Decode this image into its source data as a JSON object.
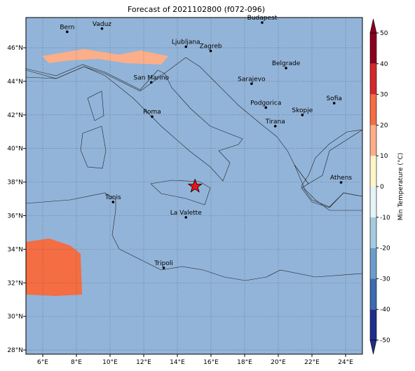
{
  "title": "Forecast of 2021102800 (f072-096)",
  "map": {
    "lon_range": [
      5,
      25
    ],
    "lat_range": [
      27.75,
      47.8
    ],
    "xticks": [
      {
        "value": 6,
        "label": "6°E"
      },
      {
        "value": 8,
        "label": "8°E"
      },
      {
        "value": 10,
        "label": "10°E"
      },
      {
        "value": 12,
        "label": "12°E"
      },
      {
        "value": 14,
        "label": "14°E"
      },
      {
        "value": 16,
        "label": "16°E"
      },
      {
        "value": 18,
        "label": "18°E"
      },
      {
        "value": 20,
        "label": "20°E"
      },
      {
        "value": 22,
        "label": "22°E"
      },
      {
        "value": 24,
        "label": "24°E"
      }
    ],
    "yticks": [
      {
        "value": 28,
        "label": "28°N"
      },
      {
        "value": 30,
        "label": "30°N"
      },
      {
        "value": 32,
        "label": "32°N"
      },
      {
        "value": 34,
        "label": "34°N"
      },
      {
        "value": 36,
        "label": "36°N"
      },
      {
        "value": 38,
        "label": "38°N"
      },
      {
        "value": 40,
        "label": "40°N"
      },
      {
        "value": 42,
        "label": "42°N"
      },
      {
        "value": 44,
        "label": "44°N"
      },
      {
        "value": 46,
        "label": "46°N"
      }
    ],
    "cities": [
      {
        "name": "Bern",
        "lon": 7.45,
        "lat": 46.95
      },
      {
        "name": "Vaduz",
        "lon": 9.52,
        "lat": 47.14
      },
      {
        "name": "Budapest",
        "lon": 19.04,
        "lat": 47.5
      },
      {
        "name": "Ljubljana",
        "lon": 14.51,
        "lat": 46.06
      },
      {
        "name": "Zagreb",
        "lon": 15.98,
        "lat": 45.81
      },
      {
        "name": "Belgrade",
        "lon": 20.46,
        "lat": 44.79
      },
      {
        "name": "San Marino",
        "lon": 12.45,
        "lat": 43.94
      },
      {
        "name": "Sarajevo",
        "lon": 18.41,
        "lat": 43.86
      },
      {
        "name": "Sofia",
        "lon": 23.32,
        "lat": 42.7
      },
      {
        "name": "Roma",
        "lon": 12.5,
        "lat": 41.9
      },
      {
        "name": "Podgorica",
        "lon": 19.26,
        "lat": 42.44
      },
      {
        "name": "Skopje",
        "lon": 21.43,
        "lat": 42.0
      },
      {
        "name": "Tirana",
        "lon": 19.82,
        "lat": 41.33
      },
      {
        "name": "Athens",
        "lon": 23.73,
        "lat": 37.98
      },
      {
        "name": "Tunis",
        "lon": 10.18,
        "lat": 36.81
      },
      {
        "name": "La Valette",
        "lon": 14.51,
        "lat": 35.9
      },
      {
        "name": "Tripoli",
        "lon": 13.19,
        "lat": 32.89
      }
    ],
    "marker": {
      "lon": 15.05,
      "lat": 37.75
    }
  },
  "colorbar": {
    "label": "Min Temperature (°C)",
    "ticks": [
      -50,
      -40,
      -30,
      -20,
      -10,
      0,
      10,
      20,
      30,
      40,
      50
    ],
    "colors": [
      "#1f2e8c",
      "#3b6bb0",
      "#6b9dca",
      "#a4cbe0",
      "#e4f4f7",
      "#fef6c9",
      "#fcae89",
      "#f46d43",
      "#d4282a",
      "#8b0020"
    ]
  }
}
